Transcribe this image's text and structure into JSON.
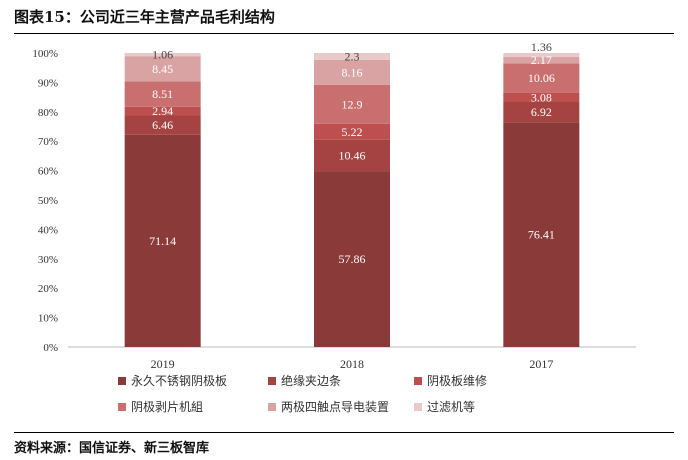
{
  "title": "图表15：公司近三年主营产品毛利结构",
  "source": "资料来源：国信证券、新三板智库",
  "chart_data": {
    "type": "bar",
    "stacked": "percent",
    "categories": [
      "2019",
      "2018",
      "2017"
    ],
    "yticks": [
      "0%",
      "10%",
      "20%",
      "30%",
      "40%",
      "50%",
      "60%",
      "70%",
      "80%",
      "90%",
      "100%"
    ],
    "ylim": [
      0,
      100
    ],
    "grid": false,
    "legend_position": "bottom",
    "series": [
      {
        "name": "永久不锈钢阴极板",
        "color": "#8B3A3A",
        "values": [
          71.14,
          57.86,
          76.41
        ],
        "labels": [
          "71.14",
          "57.86",
          "76.41"
        ]
      },
      {
        "name": "绝缘夹边条",
        "color": "#A54343",
        "values": [
          6.46,
          10.46,
          6.92
        ],
        "labels": [
          "6.46",
          "10.46",
          "6.92"
        ]
      },
      {
        "name": "阴极板维修",
        "color": "#BD4F4F",
        "values": [
          2.94,
          5.22,
          3.08
        ],
        "labels": [
          "2.94",
          "5.22",
          "3.08"
        ]
      },
      {
        "name": "阴极剥片机組",
        "color": "#C96F6F",
        "values": [
          8.51,
          12.9,
          10.06
        ],
        "labels": [
          "8.51",
          "12.9",
          "10.06"
        ]
      },
      {
        "name": "两极四触点导电装置",
        "color": "#D9A3A3",
        "values": [
          8.45,
          8.16,
          2.17
        ],
        "labels": [
          "8.45",
          "8.16",
          "2.17"
        ]
      },
      {
        "name": "过滤机等",
        "color": "#E8CACA",
        "values": [
          1.06,
          2.3,
          1.36
        ],
        "labels": [
          "1.06",
          "2.3",
          "1.36"
        ]
      }
    ]
  }
}
